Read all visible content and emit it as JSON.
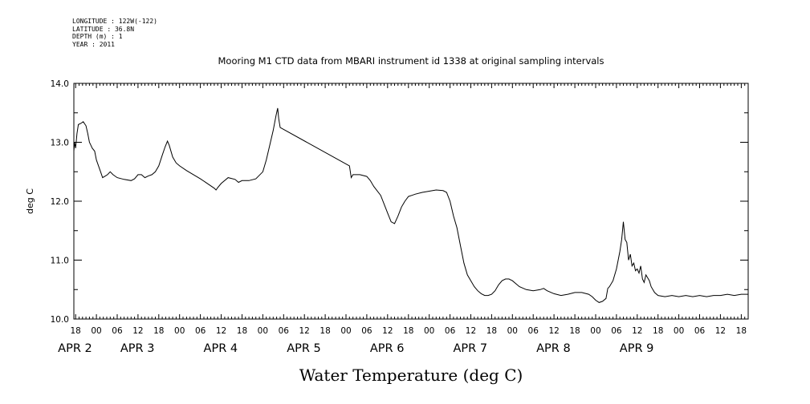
{
  "meta": [
    "LONGITUDE : 122W(-122)",
    "LATITUDE : 36.8N",
    "DEPTH (m) : 1",
    "YEAR : 2011"
  ],
  "chart_data": {
    "type": "line",
    "title": "Mooring M1 CTD data from MBARI instrument id 1338 at original sampling intervals",
    "xlabel": "",
    "ylabel": "deg C",
    "bottom_title": "Water Temperature (deg C)",
    "xlim": [
      -6.5,
      188
    ],
    "x_units": "hours since 2011-04-02 00:00",
    "ylim": [
      10.0,
      14.0
    ],
    "yticks": [
      "10.0",
      "11.0",
      "12.0",
      "13.0",
      "14.0"
    ],
    "hour_ticks": [
      {
        "x": -6,
        "label": "18"
      },
      {
        "x": 0,
        "label": "00"
      },
      {
        "x": 6,
        "label": "06"
      },
      {
        "x": 12,
        "label": "12"
      },
      {
        "x": 18,
        "label": "18"
      },
      {
        "x": 24,
        "label": "00"
      },
      {
        "x": 30,
        "label": "06"
      },
      {
        "x": 36,
        "label": "12"
      },
      {
        "x": 42,
        "label": "18"
      },
      {
        "x": 48,
        "label": "00"
      },
      {
        "x": 54,
        "label": "06"
      },
      {
        "x": 60,
        "label": "12"
      },
      {
        "x": 66,
        "label": "18"
      },
      {
        "x": 72,
        "label": "00"
      },
      {
        "x": 78,
        "label": "06"
      },
      {
        "x": 84,
        "label": "12"
      },
      {
        "x": 90,
        "label": "18"
      },
      {
        "x": 96,
        "label": "00"
      },
      {
        "x": 102,
        "label": "06"
      },
      {
        "x": 108,
        "label": "12"
      },
      {
        "x": 114,
        "label": "18"
      },
      {
        "x": 120,
        "label": "00"
      },
      {
        "x": 126,
        "label": "06"
      },
      {
        "x": 132,
        "label": "12"
      },
      {
        "x": 138,
        "label": "18"
      },
      {
        "x": 144,
        "label": "00"
      },
      {
        "x": 150,
        "label": "06"
      },
      {
        "x": 156,
        "label": "12"
      },
      {
        "x": 162,
        "label": "18"
      },
      {
        "x": 168,
        "label": "00"
      },
      {
        "x": 174,
        "label": "06"
      },
      {
        "x": 180,
        "label": "12"
      },
      {
        "x": 186,
        "label": "18"
      }
    ],
    "day_labels": [
      {
        "x": -6,
        "label": "APR 2"
      },
      {
        "x": 12,
        "label": "APR 3"
      },
      {
        "x": 36,
        "label": "APR 4"
      },
      {
        "x": 60,
        "label": "APR 5"
      },
      {
        "x": 84,
        "label": "APR 6"
      },
      {
        "x": 108,
        "label": "APR 7"
      },
      {
        "x": 132,
        "label": "APR 8"
      },
      {
        "x": 156,
        "label": "APR 9"
      }
    ],
    "series": [
      {
        "values": [
          [
            -6.5,
            12.85
          ],
          [
            -6.3,
            13.0
          ],
          [
            -6.0,
            12.9
          ],
          [
            -5.6,
            13.15
          ],
          [
            -5.2,
            13.3
          ],
          [
            -4.5,
            13.32
          ],
          [
            -3.8,
            13.35
          ],
          [
            -3.0,
            13.28
          ],
          [
            -2.5,
            13.15
          ],
          [
            -2.0,
            13.0
          ],
          [
            -1.6,
            12.95
          ],
          [
            -1.2,
            12.9
          ],
          [
            -0.5,
            12.85
          ],
          [
            0.0,
            12.7
          ],
          [
            0.6,
            12.6
          ],
          [
            1.2,
            12.5
          ],
          [
            1.8,
            12.4
          ],
          [
            2.4,
            12.42
          ],
          [
            3.2,
            12.45
          ],
          [
            4.0,
            12.5
          ],
          [
            4.8,
            12.45
          ],
          [
            6.0,
            12.4
          ],
          [
            8.0,
            12.37
          ],
          [
            10.0,
            12.35
          ],
          [
            11.0,
            12.38
          ],
          [
            12.0,
            12.45
          ],
          [
            13.0,
            12.45
          ],
          [
            14.0,
            12.4
          ],
          [
            15.0,
            12.43
          ],
          [
            16.0,
            12.45
          ],
          [
            17.0,
            12.5
          ],
          [
            18.0,
            12.6
          ],
          [
            19.0,
            12.78
          ],
          [
            19.8,
            12.92
          ],
          [
            20.5,
            13.02
          ],
          [
            21.0,
            12.95
          ],
          [
            22.0,
            12.75
          ],
          [
            23.0,
            12.65
          ],
          [
            24.0,
            12.6
          ],
          [
            26.0,
            12.52
          ],
          [
            28.0,
            12.45
          ],
          [
            30.0,
            12.38
          ],
          [
            32.0,
            12.3
          ],
          [
            34.0,
            12.22
          ],
          [
            34.5,
            12.19
          ],
          [
            35.0,
            12.23
          ],
          [
            36.0,
            12.3
          ],
          [
            38.0,
            12.4
          ],
          [
            40.0,
            12.37
          ],
          [
            41.0,
            12.32
          ],
          [
            42.0,
            12.35
          ],
          [
            44.0,
            12.35
          ],
          [
            46.0,
            12.38
          ],
          [
            48.0,
            12.5
          ],
          [
            49.0,
            12.7
          ],
          [
            50.0,
            12.95
          ],
          [
            51.0,
            13.2
          ],
          [
            51.8,
            13.45
          ],
          [
            52.3,
            13.58
          ],
          [
            52.6,
            13.4
          ],
          [
            53.0,
            13.25
          ],
          [
            73.0,
            12.6
          ],
          [
            73.5,
            12.4
          ],
          [
            74.0,
            12.45
          ],
          [
            76.0,
            12.45
          ],
          [
            78.0,
            12.42
          ],
          [
            79.0,
            12.35
          ],
          [
            80.0,
            12.25
          ],
          [
            82.0,
            12.1
          ],
          [
            83.0,
            11.95
          ],
          [
            84.0,
            11.8
          ],
          [
            85.0,
            11.65
          ],
          [
            86.0,
            11.62
          ],
          [
            87.0,
            11.75
          ],
          [
            88.0,
            11.9
          ],
          [
            89.0,
            12.0
          ],
          [
            90.0,
            12.08
          ],
          [
            91.0,
            12.1
          ],
          [
            92.0,
            12.12
          ],
          [
            94.0,
            12.15
          ],
          [
            96.0,
            12.17
          ],
          [
            98.0,
            12.19
          ],
          [
            100.0,
            12.18
          ],
          [
            101.0,
            12.15
          ],
          [
            102.0,
            12.0
          ],
          [
            103.0,
            11.75
          ],
          [
            104.0,
            11.55
          ],
          [
            105.0,
            11.25
          ],
          [
            106.0,
            10.95
          ],
          [
            107.0,
            10.75
          ],
          [
            108.0,
            10.65
          ],
          [
            109.0,
            10.55
          ],
          [
            110.0,
            10.48
          ],
          [
            111.0,
            10.43
          ],
          [
            112.0,
            10.4
          ],
          [
            113.0,
            10.4
          ],
          [
            114.0,
            10.42
          ],
          [
            115.0,
            10.48
          ],
          [
            116.0,
            10.58
          ],
          [
            117.0,
            10.65
          ],
          [
            118.0,
            10.68
          ],
          [
            119.0,
            10.68
          ],
          [
            120.0,
            10.65
          ],
          [
            121.0,
            10.6
          ],
          [
            122.0,
            10.55
          ],
          [
            124.0,
            10.5
          ],
          [
            126.0,
            10.48
          ],
          [
            128.0,
            10.5
          ],
          [
            129.0,
            10.52
          ],
          [
            130.0,
            10.48
          ],
          [
            132.0,
            10.43
          ],
          [
            134.0,
            10.4
          ],
          [
            136.0,
            10.42
          ],
          [
            138.0,
            10.45
          ],
          [
            140.0,
            10.45
          ],
          [
            142.0,
            10.42
          ],
          [
            143.0,
            10.38
          ],
          [
            144.0,
            10.32
          ],
          [
            145.0,
            10.28
          ],
          [
            146.0,
            10.3
          ],
          [
            147.0,
            10.35
          ],
          [
            147.5,
            10.52
          ],
          [
            148.0,
            10.55
          ],
          [
            149.0,
            10.65
          ],
          [
            150.0,
            10.85
          ],
          [
            151.0,
            11.15
          ],
          [
            151.5,
            11.35
          ],
          [
            152.0,
            11.65
          ],
          [
            152.5,
            11.35
          ],
          [
            153.0,
            11.3
          ],
          [
            153.5,
            11.0
          ],
          [
            154.0,
            11.1
          ],
          [
            154.5,
            10.9
          ],
          [
            155.0,
            10.95
          ],
          [
            155.5,
            10.82
          ],
          [
            156.0,
            10.85
          ],
          [
            156.5,
            10.78
          ],
          [
            157.0,
            10.9
          ],
          [
            157.5,
            10.68
          ],
          [
            158.0,
            10.62
          ],
          [
            158.5,
            10.75
          ],
          [
            159.0,
            10.7
          ],
          [
            159.5,
            10.65
          ],
          [
            160.0,
            10.55
          ],
          [
            161.0,
            10.45
          ],
          [
            162.0,
            10.4
          ],
          [
            164.0,
            10.38
          ],
          [
            166.0,
            10.4
          ],
          [
            168.0,
            10.38
          ],
          [
            170.0,
            10.4
          ],
          [
            172.0,
            10.38
          ],
          [
            174.0,
            10.4
          ],
          [
            176.0,
            10.38
          ],
          [
            178.0,
            10.4
          ],
          [
            180.0,
            10.4
          ],
          [
            182.0,
            10.42
          ],
          [
            184.0,
            10.4
          ],
          [
            186.0,
            10.42
          ],
          [
            188.0,
            10.42
          ]
        ]
      }
    ]
  }
}
